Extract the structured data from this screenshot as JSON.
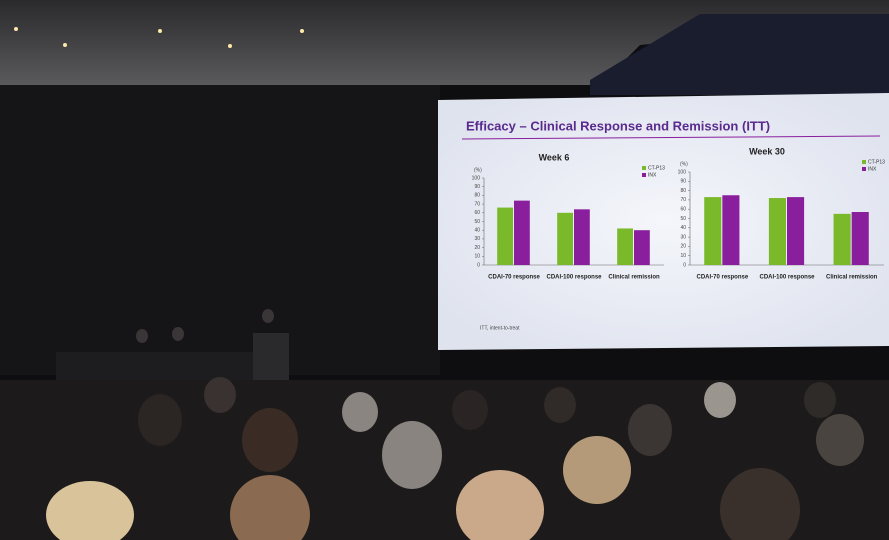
{
  "slide": {
    "title": "Efficacy – Clinical Response and Remission (ITT)",
    "footnote": "ITT, intent-to-treat"
  },
  "chart_data": [
    {
      "type": "bar",
      "title": "Week 6",
      "y_label": "(%)",
      "categories": [
        "CDAI-70 response",
        "CDAI-100 response",
        "Clinical remission"
      ],
      "series": [
        {
          "name": "CT-P13",
          "color": "#7ab929",
          "values": [
            66,
            60,
            42
          ]
        },
        {
          "name": "INX",
          "color": "#8a1f9e",
          "values": [
            74,
            64,
            40
          ]
        }
      ],
      "ylim": [
        0,
        100
      ],
      "yticks": [
        0,
        10,
        20,
        30,
        40,
        50,
        60,
        70,
        80,
        90,
        100
      ]
    },
    {
      "type": "bar",
      "title": "Week 30",
      "y_label": "(%)",
      "categories": [
        "CDAI-70 response",
        "CDAI-100 response",
        "Clinical remission"
      ],
      "series": [
        {
          "name": "CT-P13",
          "color": "#7ab929",
          "values": [
            73,
            72,
            55
          ]
        },
        {
          "name": "INX",
          "color": "#8a1f9e",
          "values": [
            75,
            73,
            57
          ]
        }
      ],
      "ylim": [
        0,
        100
      ],
      "yticks": [
        0,
        10,
        20,
        30,
        40,
        50,
        60,
        70,
        80,
        90,
        100
      ]
    }
  ]
}
